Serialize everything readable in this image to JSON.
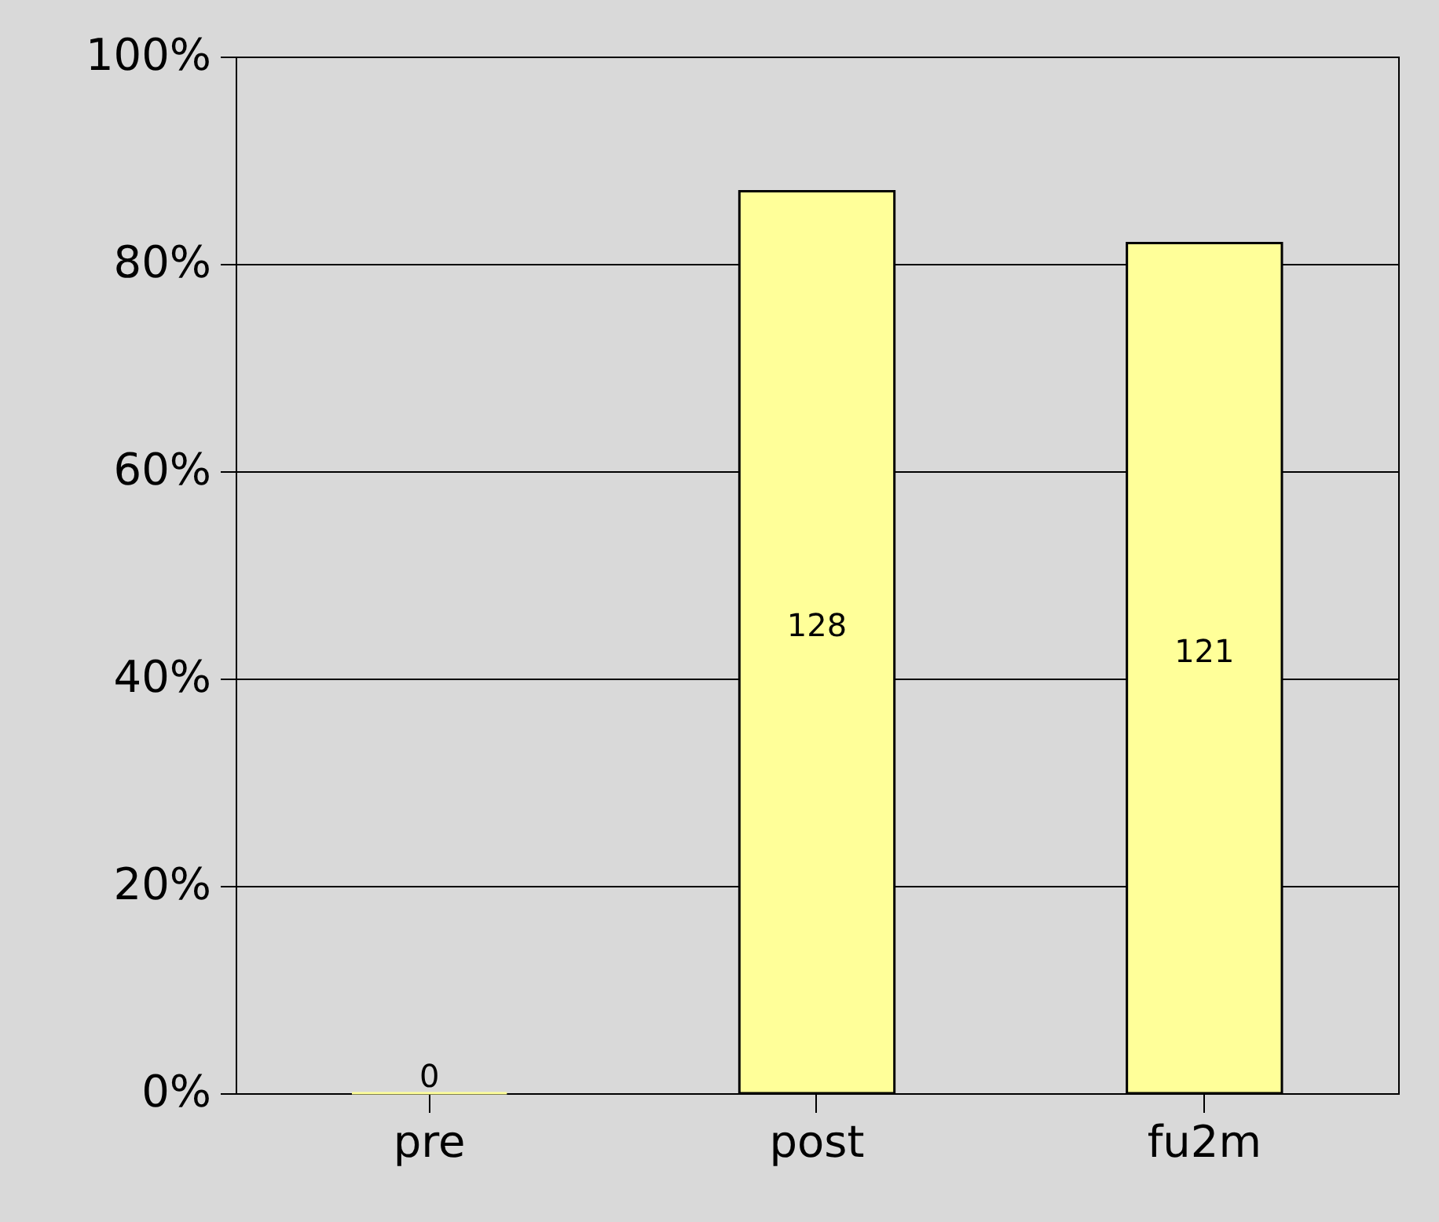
{
  "chart_data": {
    "type": "bar",
    "categories": [
      "pre",
      "post",
      "fu2m"
    ],
    "values": [
      0,
      87,
      82
    ],
    "annotations": [
      "0",
      "128",
      "121"
    ],
    "color": "#ffff99",
    "ylim": [
      0,
      100
    ],
    "yticks": [
      {
        "value": 0,
        "label": "0%"
      },
      {
        "value": 20,
        "label": "20%"
      },
      {
        "value": 40,
        "label": "40%"
      },
      {
        "value": 60,
        "label": "60%"
      },
      {
        "value": 80,
        "label": "80%"
      },
      {
        "value": 100,
        "label": "100%"
      }
    ],
    "grid": "y"
  }
}
